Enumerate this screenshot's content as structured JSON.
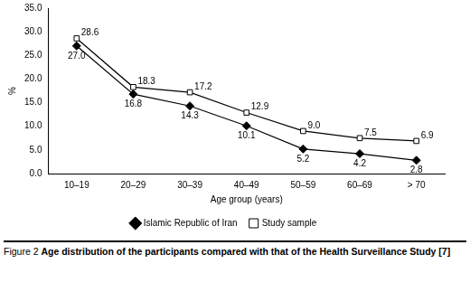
{
  "chart_data": {
    "type": "line",
    "caption_label": "Figure 2",
    "caption": "Age distribution of the participants compared with that of the Health Surveillance Study [7]",
    "x_label": "Age group (years)",
    "y_label": "%",
    "categories": [
      "10–19",
      "20–29",
      "30–39",
      "40–49",
      "50–59",
      "60–69",
      "> 70"
    ],
    "series": [
      {
        "name": "Islamic Republic of Iran",
        "color": "#000000",
        "marker": "diamond",
        "values": [
          27.0,
          16.8,
          14.3,
          10.1,
          5.2,
          4.2,
          2.8
        ],
        "value_labels": [
          "27.0",
          "16.8",
          "14.3",
          "10.1",
          "5.2",
          "4.2",
          "2.8"
        ]
      },
      {
        "name": "Study sample",
        "color": "#000000",
        "marker": "open_square",
        "values": [
          28.6,
          18.3,
          17.2,
          12.9,
          9.0,
          7.5,
          6.9
        ],
        "value_labels": [
          "28.6",
          "18.3",
          "17.2",
          "12.9",
          "9.0",
          "7.5",
          "6.9"
        ]
      }
    ],
    "ylim": [
      0,
      35
    ],
    "yticks": [
      {
        "value": 0,
        "label": "0.0"
      },
      {
        "value": 5,
        "label": "5.0"
      },
      {
        "value": 10,
        "label": "10.0"
      },
      {
        "value": 15,
        "label": "15.0"
      },
      {
        "value": 20,
        "label": "20.0"
      },
      {
        "value": 25,
        "label": "25.0"
      },
      {
        "value": 30,
        "label": "30.0"
      },
      {
        "value": 35,
        "label": "35.0"
      }
    ],
    "grid": false,
    "legend": "bottom",
    "data_labels": true
  }
}
